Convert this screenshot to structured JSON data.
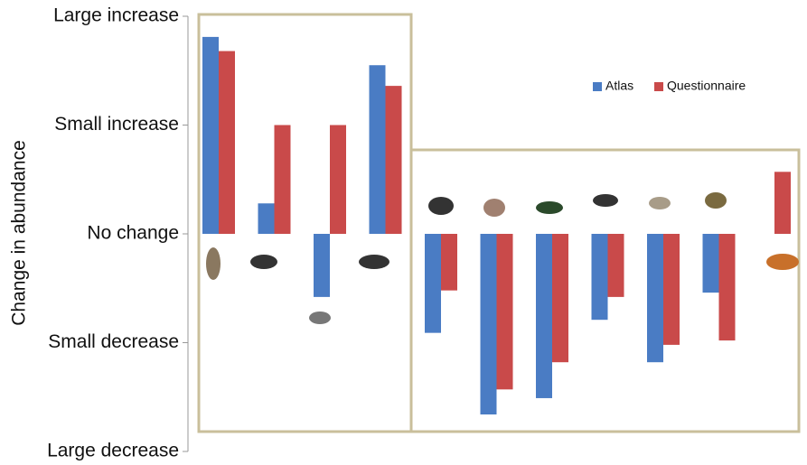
{
  "chart_data": {
    "type": "bar",
    "ylabel": "Change in abundance",
    "categories": [
      null,
      null,
      null,
      null,
      null,
      null,
      null,
      null,
      null,
      null,
      null
    ],
    "series": [
      {
        "name": "Atlas",
        "color": "#4a7cc4",
        "values": [
          1.81,
          0.28,
          -0.58,
          1.55,
          -0.91,
          -1.66,
          -1.51,
          -0.79,
          -1.18,
          -0.54,
          null
        ]
      },
      {
        "name": "Questionnaire",
        "color": "#c94a4a",
        "values": [
          1.68,
          1.0,
          1.0,
          1.36,
          -0.52,
          -1.43,
          -1.18,
          -0.58,
          -1.02,
          -0.98,
          0.57
        ]
      }
    ],
    "ylim": [
      -2,
      2
    ],
    "yticks": [
      {
        "value": 2,
        "label": "Large increase"
      },
      {
        "value": 1,
        "label": "Small increase"
      },
      {
        "value": 0,
        "label": "No change"
      },
      {
        "value": -1,
        "label": "Small decrease"
      },
      {
        "value": -2,
        "label": "Large decrease"
      }
    ],
    "legend": "top-right"
  }
}
